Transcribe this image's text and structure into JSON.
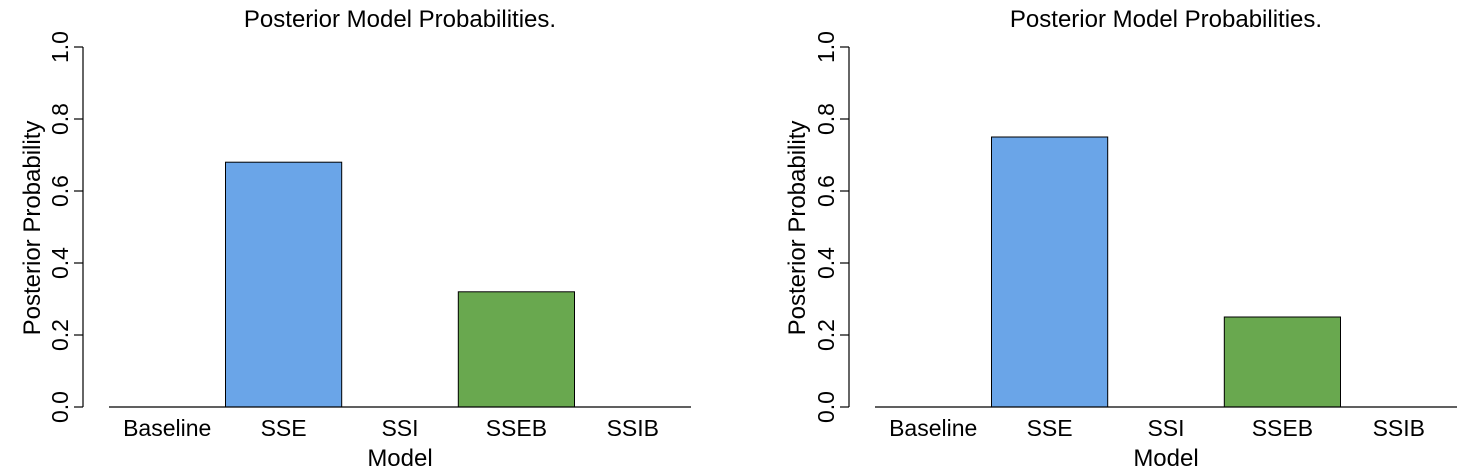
{
  "chart_data": [
    {
      "type": "bar",
      "title": "Posterior Model Probabilities.",
      "xlabel": "Model",
      "ylabel": "Posterior Probability",
      "categories": [
        "Baseline",
        "SSE",
        "SSI",
        "SSEB",
        "SSIB"
      ],
      "values": [
        0.0,
        0.68,
        0.0,
        0.32,
        0.0
      ],
      "colors": [
        "#ffffff",
        "#6aa5e8",
        "#ffffff",
        "#69a84f",
        "#ffffff"
      ],
      "ylim": [
        0.0,
        1.0
      ],
      "yticks": [
        "0.0",
        "0.2",
        "0.4",
        "0.6",
        "0.8",
        "1.0"
      ],
      "grid": false,
      "legend": "none"
    },
    {
      "type": "bar",
      "title": "Posterior Model Probabilities.",
      "xlabel": "Model",
      "ylabel": "Posterior Probability",
      "categories": [
        "Baseline",
        "SSE",
        "SSI",
        "SSEB",
        "SSIB"
      ],
      "values": [
        0.0,
        0.75,
        0.0,
        0.25,
        0.0
      ],
      "colors": [
        "#ffffff",
        "#6aa5e8",
        "#ffffff",
        "#69a84f",
        "#ffffff"
      ],
      "ylim": [
        0.0,
        1.0
      ],
      "yticks": [
        "0.0",
        "0.2",
        "0.4",
        "0.6",
        "0.8",
        "1.0"
      ],
      "grid": false,
      "legend": "none"
    }
  ]
}
